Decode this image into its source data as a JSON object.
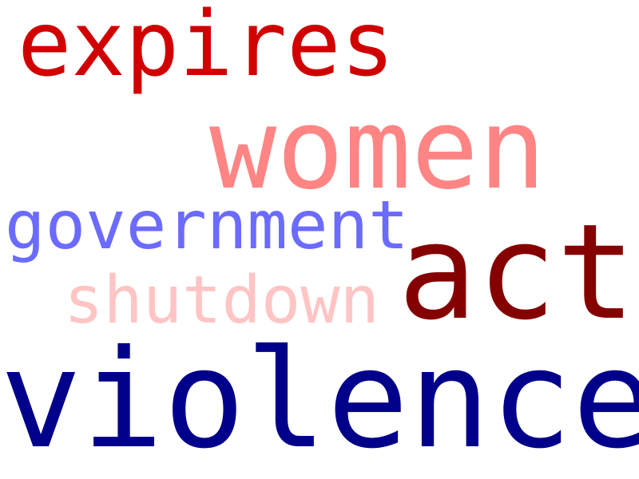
{
  "words": [
    {
      "text": "expires",
      "color": "#d10000"
    },
    {
      "text": "women",
      "color": "#ff8585"
    },
    {
      "text": "government",
      "color": "#6b6bff"
    },
    {
      "text": "act",
      "color": "#850000"
    },
    {
      "text": "shutdown",
      "color": "#ffc4c4"
    },
    {
      "text": "violence",
      "color": "#00008a"
    }
  ]
}
